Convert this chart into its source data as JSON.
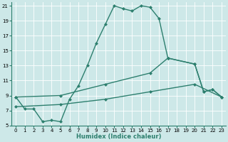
{
  "xlabel": "Humidex (Indice chaleur)",
  "bg_color": "#cde8e8",
  "grid_color": "#ffffff",
  "line_color": "#2d7f6e",
  "xlim": [
    -0.5,
    23.5
  ],
  "ylim": [
    5,
    21.5
  ],
  "xticks": [
    0,
    1,
    2,
    3,
    4,
    5,
    6,
    7,
    8,
    9,
    10,
    11,
    12,
    13,
    14,
    15,
    16,
    17,
    18,
    19,
    20,
    21,
    22,
    23
  ],
  "yticks": [
    5,
    7,
    9,
    11,
    13,
    15,
    17,
    19,
    21
  ],
  "curve1_x": [
    0,
    1,
    2,
    3,
    4,
    5,
    6,
    7,
    8,
    9,
    10,
    11,
    12,
    13,
    14,
    15,
    16,
    17,
    20,
    21,
    22,
    23
  ],
  "curve1_y": [
    8.8,
    7.2,
    7.2,
    5.5,
    5.7,
    5.5,
    8.5,
    10.3,
    13.0,
    16.0,
    18.5,
    21.0,
    20.6,
    20.3,
    21.0,
    20.8,
    19.3,
    14.0,
    13.2,
    9.5,
    9.8,
    8.8
  ],
  "curve2_x": [
    0,
    5,
    10,
    15,
    17,
    20,
    21,
    22,
    23
  ],
  "curve2_y": [
    8.8,
    9.0,
    10.5,
    12.0,
    14.0,
    13.2,
    9.5,
    9.8,
    8.8
  ],
  "curve3_x": [
    0,
    5,
    10,
    15,
    20,
    23
  ],
  "curve3_y": [
    7.5,
    7.8,
    8.5,
    9.5,
    10.5,
    8.8
  ]
}
